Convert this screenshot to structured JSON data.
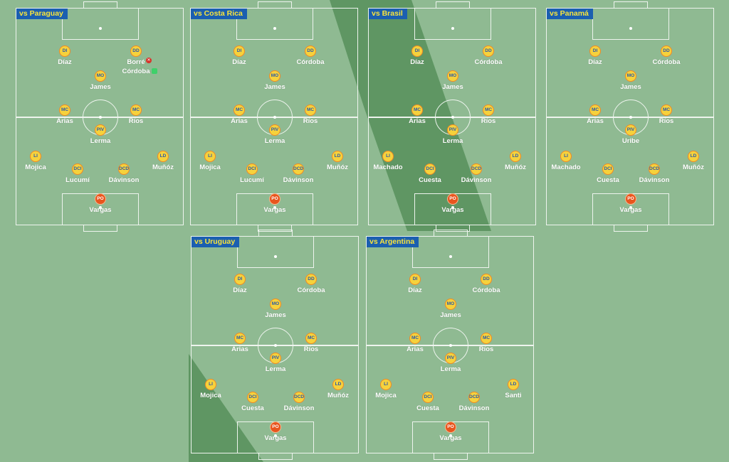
{
  "colors": {
    "pitch": "#8fba92",
    "stripe": "#5f9663",
    "tag_bg": "#1b5fb0",
    "tag_text": "#f8e43c",
    "disc": "#f6d23c",
    "goalkeeper": "#e8551e"
  },
  "matches": [
    {
      "title": "vs Paraguay",
      "players": [
        {
          "pos": "DI",
          "name": "Díaz"
        },
        {
          "pos": "DD",
          "name": "Borré"
        },
        {
          "pos": "MO",
          "name": "James"
        },
        {
          "pos": "MC",
          "name": "Arias"
        },
        {
          "pos": "MC",
          "name": "Ríos"
        },
        {
          "pos": "PIV",
          "name": "Lerma"
        },
        {
          "pos": "LI",
          "name": "Mojica"
        },
        {
          "pos": "LD",
          "name": "Muñóz"
        },
        {
          "pos": "DCI",
          "name": "Lucumí"
        },
        {
          "pos": "DCD",
          "name": "Dávinson"
        },
        {
          "pos": "PO",
          "name": "Vargas"
        }
      ],
      "substitute": "Córdoba"
    },
    {
      "title": "vs Costa Rica",
      "players": [
        {
          "pos": "DI",
          "name": "Díaz"
        },
        {
          "pos": "DD",
          "name": "Córdoba"
        },
        {
          "pos": "MO",
          "name": "James"
        },
        {
          "pos": "MC",
          "name": "Arias"
        },
        {
          "pos": "MC",
          "name": "Ríos"
        },
        {
          "pos": "PIV",
          "name": "Lerma"
        },
        {
          "pos": "LI",
          "name": "Mojica"
        },
        {
          "pos": "LD",
          "name": "Muñóz"
        },
        {
          "pos": "DCI",
          "name": "Lucumí"
        },
        {
          "pos": "DCD",
          "name": "Dávinson"
        },
        {
          "pos": "PO",
          "name": "Vargas"
        }
      ]
    },
    {
      "title": "vs Brasil",
      "players": [
        {
          "pos": "DI",
          "name": "Díaz"
        },
        {
          "pos": "DD",
          "name": "Córdoba"
        },
        {
          "pos": "MO",
          "name": "James"
        },
        {
          "pos": "MC",
          "name": "Arias"
        },
        {
          "pos": "MC",
          "name": "Ríos"
        },
        {
          "pos": "PIV",
          "name": "Lerma"
        },
        {
          "pos": "LI",
          "name": "Machado"
        },
        {
          "pos": "LD",
          "name": "Muñóz"
        },
        {
          "pos": "DCI",
          "name": "Cuesta"
        },
        {
          "pos": "DCD",
          "name": "Dávinson"
        },
        {
          "pos": "PO",
          "name": "Vargas"
        }
      ]
    },
    {
      "title": "vs Panamá",
      "players": [
        {
          "pos": "DI",
          "name": "Díaz"
        },
        {
          "pos": "DD",
          "name": "Córdoba"
        },
        {
          "pos": "MO",
          "name": "James"
        },
        {
          "pos": "MC",
          "name": "Arias"
        },
        {
          "pos": "MC",
          "name": "Ríos"
        },
        {
          "pos": "PIV",
          "name": "Uribe"
        },
        {
          "pos": "LI",
          "name": "Machado"
        },
        {
          "pos": "LD",
          "name": "Muñóz"
        },
        {
          "pos": "DCI",
          "name": "Cuesta"
        },
        {
          "pos": "DCD",
          "name": "Dávinson"
        },
        {
          "pos": "PO",
          "name": "Vargas"
        }
      ]
    },
    {
      "title": "vs Uruguay",
      "players": [
        {
          "pos": "DI",
          "name": "Díaz"
        },
        {
          "pos": "DD",
          "name": "Córdoba"
        },
        {
          "pos": "MO",
          "name": "James"
        },
        {
          "pos": "MC",
          "name": "Arias"
        },
        {
          "pos": "MC",
          "name": "Ríos"
        },
        {
          "pos": "PIV",
          "name": "Lerma"
        },
        {
          "pos": "LI",
          "name": "Mojica"
        },
        {
          "pos": "LD",
          "name": "Muñóz"
        },
        {
          "pos": "DCI",
          "name": "Cuesta"
        },
        {
          "pos": "DCD",
          "name": "Dávinson"
        },
        {
          "pos": "PO",
          "name": "Vargas"
        }
      ]
    },
    {
      "title": "vs Argentina",
      "players": [
        {
          "pos": "DI",
          "name": "Díaz"
        },
        {
          "pos": "DD",
          "name": "Córdoba"
        },
        {
          "pos": "MO",
          "name": "James"
        },
        {
          "pos": "MC",
          "name": "Arias"
        },
        {
          "pos": "MC",
          "name": "Ríos"
        },
        {
          "pos": "PIV",
          "name": "Lerma"
        },
        {
          "pos": "LI",
          "name": "Mojica"
        },
        {
          "pos": "LD",
          "name": "Santi"
        },
        {
          "pos": "DCI",
          "name": "Cuesta"
        },
        {
          "pos": "DCD",
          "name": "Dávinson"
        },
        {
          "pos": "PO",
          "name": "Vargas"
        }
      ]
    }
  ]
}
